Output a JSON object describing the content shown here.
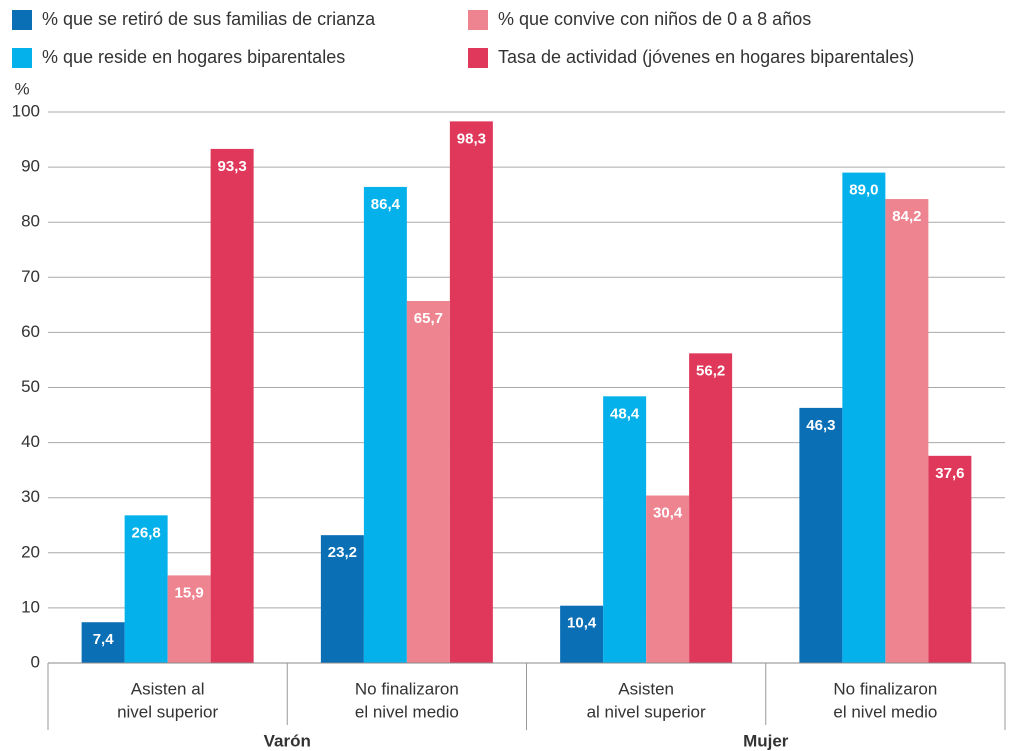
{
  "chart_data": {
    "type": "bar",
    "y_label": "%",
    "categories": [
      [
        "Asisten al",
        "nivel superior"
      ],
      [
        "No finalizaron",
        "el nivel medio"
      ],
      [
        "Asisten",
        "al nivel superior"
      ],
      [
        "No finalizaron",
        "el nivel medio"
      ]
    ],
    "groups": [
      {
        "name": "Varón",
        "categories": [
          0,
          1
        ]
      },
      {
        "name": "Mujer",
        "categories": [
          2,
          3
        ]
      }
    ],
    "series": [
      {
        "name": "% que se retiró de sus familias de crianza",
        "color": "#0a6fb5",
        "values": [
          7.4,
          23.2,
          10.4,
          46.3
        ],
        "value_labels": [
          "7,4",
          "23,2",
          "10,4",
          "46,3"
        ]
      },
      {
        "name": "% que reside en hogares biparentales",
        "color": "#05b1ea",
        "values": [
          26.8,
          86.4,
          48.4,
          89.0
        ],
        "value_labels": [
          "26,8",
          "86,4",
          "48,4",
          "89,0"
        ]
      },
      {
        "name": "% que convive con niños de 0 a 8 años",
        "color": "#ee8490",
        "values": [
          15.9,
          65.7,
          30.4,
          84.2
        ],
        "value_labels": [
          "15,9",
          "65,7",
          "30,4",
          "84,2"
        ]
      },
      {
        "name": "Tasa de actividad (jóvenes en hogares biparentales)",
        "color": "#e0385a",
        "values": [
          93.3,
          98.3,
          56.2,
          37.6
        ],
        "value_labels": [
          "93,3",
          "98,3",
          "56,2",
          "37,6"
        ]
      }
    ],
    "ylim": [
      0,
      100
    ],
    "yticks": [
      0,
      10,
      20,
      30,
      40,
      50,
      60,
      70,
      80,
      90,
      100
    ],
    "grid": true,
    "legend": "top"
  }
}
